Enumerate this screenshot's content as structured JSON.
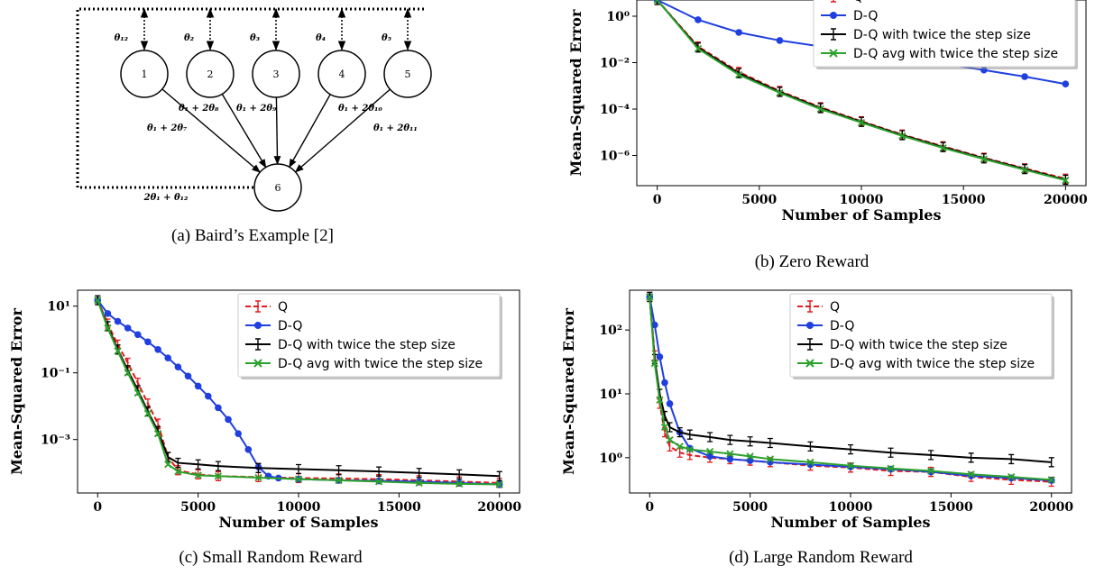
{
  "captions": {
    "a": "(a) Baird’s Example [2]",
    "b": "(b) Zero Reward",
    "c": "(c) Small Random Reward",
    "d": "(d) Large Random Reward"
  },
  "diagram": {
    "nodes": [
      {
        "id": "1",
        "label": "1",
        "top_label": "θ₁₂"
      },
      {
        "id": "2",
        "label": "2",
        "top_label": "θ₂"
      },
      {
        "id": "3",
        "label": "3",
        "top_label": "θ₃"
      },
      {
        "id": "4",
        "label": "4",
        "top_label": "θ₄"
      },
      {
        "id": "5",
        "label": "5",
        "top_label": "θ₅"
      },
      {
        "id": "6",
        "label": "6",
        "top_label": ""
      }
    ],
    "edge_labels": [
      "θ₁ + 2θ₇",
      "θ₁ + 2θ₈",
      "θ₁ + 2θ₉",
      "θ₁ + 2θ₁₀",
      "θ₁ + 2θ₁₁"
    ],
    "self_loop_label": "2θ₁ + θ₁₂"
  },
  "colors": {
    "Q": "#e41a1c",
    "D-Q": "#1f3fe0",
    "D-Q with twice the step size": "#000000",
    "D-Q avg with twice the step size": "#2ca02c"
  },
  "chart_data": [
    {
      "id": "b",
      "type": "line",
      "title": "",
      "xlabel": "Number of Samples",
      "ylabel": "Mean-Squared Error",
      "xlim": [
        -1000,
        21000
      ],
      "ylim": [
        5e-08,
        5
      ],
      "yscale": "log",
      "xticks": [
        0,
        5000,
        10000,
        15000,
        20000
      ],
      "yticks": [
        {
          "v": 1e-06,
          "label": "10⁻⁶"
        },
        {
          "v": 0.0001,
          "label": "10⁻⁴"
        },
        {
          "v": 0.01,
          "label": "10⁻²"
        },
        {
          "v": 1,
          "label": "10⁰"
        }
      ],
      "legend": "top-right",
      "series": [
        {
          "name": "Q",
          "x": [
            0,
            2000,
            4000,
            6000,
            8000,
            10000,
            12000,
            14000,
            16000,
            18000,
            20000
          ],
          "y": [
            5,
            0.05,
            0.004,
            0.0006,
            0.00012,
            3e-05,
            8e-06,
            2.5e-06,
            8e-07,
            2.8e-07,
            1e-07
          ]
        },
        {
          "name": "D-Q",
          "x": [
            0,
            2000,
            4000,
            6000,
            8000,
            10000,
            12000,
            14000,
            16000,
            18000,
            20000
          ],
          "y": [
            5,
            0.7,
            0.2,
            0.09,
            0.05,
            0.028,
            0.016,
            0.009,
            0.0048,
            0.0025,
            0.0012
          ]
        },
        {
          "name": "D-Q with twice the step size",
          "x": [
            0,
            2000,
            4000,
            6000,
            8000,
            10000,
            12000,
            14000,
            16000,
            18000,
            20000
          ],
          "y": [
            5,
            0.045,
            0.0035,
            0.00055,
            0.00011,
            2.8e-05,
            7.5e-06,
            2.3e-06,
            7.5e-07,
            2.6e-07,
            9e-08
          ]
        },
        {
          "name": "D-Q avg with twice the step size",
          "x": [
            0,
            2000,
            4000,
            6000,
            8000,
            10000,
            12000,
            14000,
            16000,
            18000,
            20000
          ],
          "y": [
            5,
            0.04,
            0.003,
            0.0005,
            0.0001,
            2.6e-05,
            7e-06,
            2.1e-06,
            7e-07,
            2.4e-07,
            8.5e-08
          ]
        }
      ]
    },
    {
      "id": "c",
      "type": "line",
      "title": "",
      "xlabel": "Number of Samples",
      "ylabel": "Mean-Squared Error",
      "xlim": [
        -1000,
        21000
      ],
      "ylim": [
        2.5e-05,
        30
      ],
      "yscale": "log",
      "xticks": [
        0,
        5000,
        10000,
        15000,
        20000
      ],
      "yticks": [
        {
          "v": 0.001,
          "label": "10⁻³"
        },
        {
          "v": 0.1,
          "label": "10⁻¹"
        },
        {
          "v": 10,
          "label": "10¹"
        }
      ],
      "legend": "top-right",
      "series": [
        {
          "name": "Q",
          "x": [
            0,
            500,
            1000,
            1500,
            2000,
            2500,
            3000,
            3500,
            4000,
            5000,
            6000,
            8000,
            10000,
            12000,
            14000,
            16000,
            18000,
            20000
          ],
          "y": [
            15,
            3,
            0.7,
            0.2,
            0.05,
            0.012,
            0.003,
            0.0003,
            0.00012,
            9e-05,
            8e-05,
            7.5e-05,
            7e-05,
            6.8e-05,
            6.5e-05,
            6e-05,
            5.5e-05,
            5e-05
          ]
        },
        {
          "name": "D-Q",
          "x": [
            0,
            500,
            1000,
            1500,
            2000,
            2500,
            3000,
            3500,
            4000,
            4500,
            5000,
            5500,
            6000,
            6500,
            7000,
            7500,
            8000,
            8500,
            9000,
            10000,
            12000,
            14000,
            16000,
            18000,
            20000
          ],
          "y": [
            15,
            6,
            3.5,
            2.2,
            1.4,
            0.85,
            0.5,
            0.28,
            0.15,
            0.08,
            0.04,
            0.02,
            0.009,
            0.004,
            0.0015,
            0.0005,
            0.00015,
            8e-05,
            7e-05,
            6.5e-05,
            6e-05,
            5.8e-05,
            5.5e-05,
            5e-05,
            4.5e-05
          ]
        },
        {
          "name": "D-Q with twice the step size",
          "x": [
            0,
            500,
            1000,
            1500,
            2000,
            2500,
            3000,
            3500,
            4000,
            5000,
            6000,
            8000,
            10000,
            12000,
            14000,
            16000,
            18000,
            20000
          ],
          "y": [
            15,
            2.5,
            0.5,
            0.12,
            0.03,
            0.007,
            0.0018,
            0.0003,
            0.0002,
            0.00018,
            0.00016,
            0.00014,
            0.00013,
            0.00012,
            0.00011,
            0.0001,
            9e-05,
            8e-05
          ]
        },
        {
          "name": "D-Q avg with twice the step size",
          "x": [
            0,
            500,
            1000,
            1500,
            2000,
            2500,
            3000,
            3500,
            4000,
            5000,
            6000,
            8000,
            10000,
            12000,
            14000,
            16000,
            18000,
            20000
          ],
          "y": [
            15,
            2.2,
            0.45,
            0.1,
            0.025,
            0.006,
            0.0015,
            0.00018,
            0.00011,
            8.5e-05,
            8e-05,
            7.2e-05,
            6.5e-05,
            6e-05,
            5.5e-05,
            5e-05,
            4.7e-05,
            4.5e-05
          ]
        }
      ]
    },
    {
      "id": "d",
      "type": "line",
      "title": "",
      "xlabel": "Number of Samples",
      "ylabel": "Mean-Squared Error",
      "xlim": [
        -1000,
        21000
      ],
      "ylim": [
        0.28,
        420
      ],
      "yscale": "log",
      "xticks": [
        0,
        5000,
        10000,
        15000,
        20000
      ],
      "yticks": [
        {
          "v": 1,
          "label": "10⁰"
        },
        {
          "v": 10,
          "label": "10¹"
        },
        {
          "v": 100,
          "label": "10²"
        }
      ],
      "legend": "top-right",
      "series": [
        {
          "name": "Q",
          "x": [
            0,
            250,
            500,
            750,
            1000,
            1500,
            2000,
            3000,
            4000,
            5000,
            6000,
            8000,
            10000,
            12000,
            14000,
            16000,
            18000,
            20000
          ],
          "y": [
            330,
            40,
            7,
            2.5,
            1.5,
            1.2,
            1.1,
            1,
            0.95,
            0.9,
            0.85,
            0.75,
            0.7,
            0.62,
            0.6,
            0.5,
            0.45,
            0.42
          ]
        },
        {
          "name": "D-Q",
          "x": [
            0,
            250,
            500,
            750,
            1000,
            1500,
            2000,
            3000,
            4000,
            5000,
            6000,
            8000,
            10000,
            12000,
            14000,
            16000,
            18000,
            20000
          ],
          "y": [
            330,
            120,
            38,
            15,
            7,
            2.5,
            1.4,
            1.05,
            0.95,
            0.9,
            0.85,
            0.78,
            0.72,
            0.66,
            0.6,
            0.52,
            0.48,
            0.44
          ]
        },
        {
          "name": "D-Q with twice the step size",
          "x": [
            0,
            250,
            500,
            750,
            1000,
            1500,
            2000,
            3000,
            4000,
            5000,
            6000,
            8000,
            10000,
            12000,
            14000,
            16000,
            18000,
            20000
          ],
          "y": [
            330,
            35,
            10,
            4.5,
            3,
            2.5,
            2.3,
            2.1,
            1.9,
            1.8,
            1.7,
            1.5,
            1.35,
            1.2,
            1.1,
            1,
            0.95,
            0.85
          ]
        },
        {
          "name": "D-Q avg with twice the step size",
          "x": [
            0,
            250,
            500,
            750,
            1000,
            1500,
            2000,
            3000,
            4000,
            5000,
            6000,
            8000,
            10000,
            12000,
            14000,
            16000,
            18000,
            20000
          ],
          "y": [
            330,
            30,
            8,
            3,
            1.9,
            1.5,
            1.35,
            1.25,
            1.15,
            1.05,
            0.95,
            0.85,
            0.75,
            0.68,
            0.62,
            0.55,
            0.5,
            0.45
          ]
        }
      ]
    }
  ]
}
